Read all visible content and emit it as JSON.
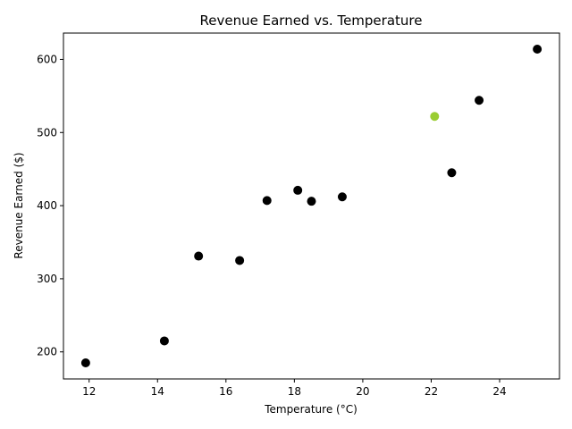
{
  "chart_data": {
    "type": "scatter",
    "title": "Revenue Earned vs. Temperature",
    "xlabel": "Temperature (°C)",
    "ylabel": "Revenue Earned ($)",
    "xlim": [
      11.25,
      25.75
    ],
    "ylim": [
      163,
      636
    ],
    "xticks": [
      12,
      14,
      16,
      18,
      20,
      22,
      24
    ],
    "yticks": [
      200,
      300,
      400,
      500,
      600
    ],
    "grid": false,
    "legend": "none",
    "series": [
      {
        "color": "#000000",
        "points": [
          {
            "x": 11.9,
            "y": 185
          },
          {
            "x": 14.2,
            "y": 215
          },
          {
            "x": 15.2,
            "y": 331
          },
          {
            "x": 16.4,
            "y": 325
          },
          {
            "x": 17.2,
            "y": 407
          },
          {
            "x": 18.1,
            "y": 421
          },
          {
            "x": 18.5,
            "y": 406
          },
          {
            "x": 19.4,
            "y": 412
          },
          {
            "x": 22.6,
            "y": 445
          },
          {
            "x": 23.4,
            "y": 544
          },
          {
            "x": 25.1,
            "y": 614
          }
        ]
      },
      {
        "color": "#9acd32",
        "points": [
          {
            "x": 22.1,
            "y": 522
          }
        ]
      }
    ]
  }
}
